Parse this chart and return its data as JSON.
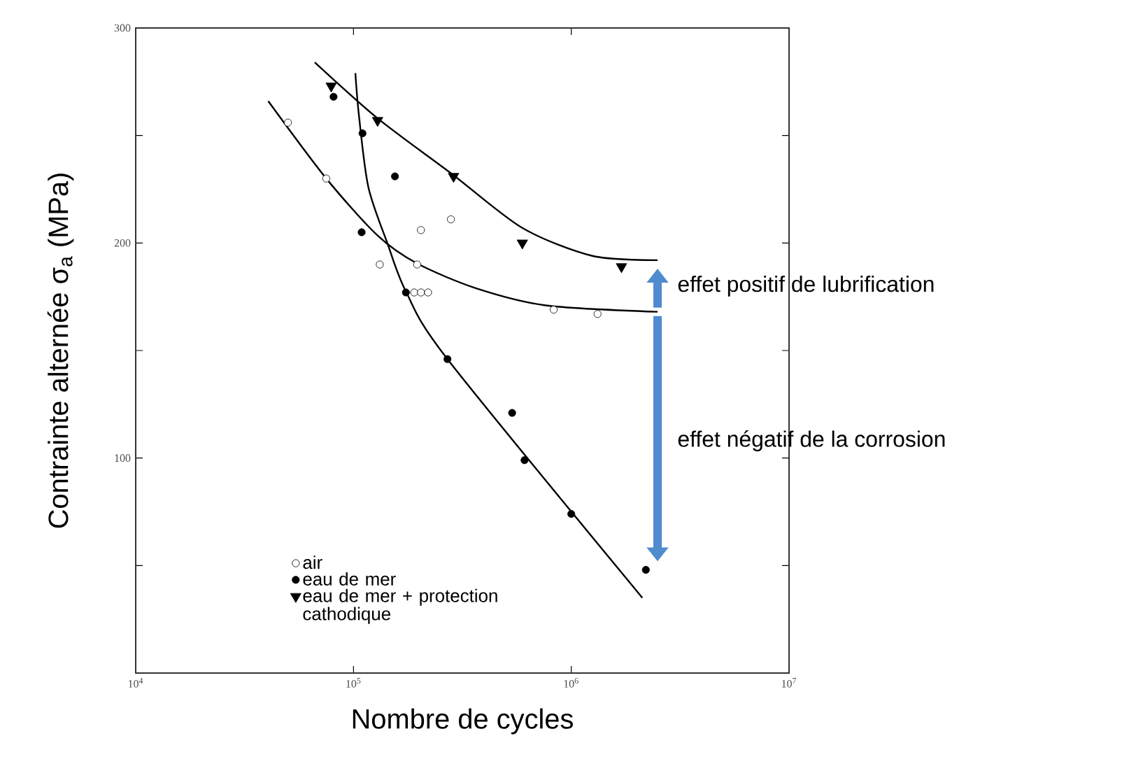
{
  "chart_data": {
    "type": "scatter",
    "xlabel": "Nombre de cycles",
    "ylabel": "Contrainte alternée σ$_{a}$ (MPa)",
    "log": "x",
    "xlim": [
      10000,
      10000000
    ],
    "ylim": [
      0,
      300
    ],
    "xticks": [
      {
        "value": 10000,
        "label": "10$^{4}$"
      },
      {
        "value": 100000,
        "label": "10$^{5}$"
      },
      {
        "value": 1000000,
        "label": "10$^{6}$"
      },
      {
        "value": 10000000,
        "label": "10$^{7}$"
      }
    ],
    "yticks": [
      {
        "value": 50,
        "label": null
      },
      100,
      {
        "value": 150,
        "label": null
      },
      200,
      {
        "value": 250,
        "label": null
      },
      300
    ],
    "grid": false,
    "legend": "bottom left",
    "series": [
      {
        "name": "air",
        "marker": "circle",
        "color": "#ffffff",
        "x": [
          50000,
          75000,
          132000,
          196000,
          204000,
          280000,
          190000,
          204000,
          220000,
          830000,
          1320000
        ],
        "values": [
          256,
          230,
          190,
          190,
          206,
          211,
          177,
          177,
          177,
          169,
          167
        ]
      },
      {
        "name": "eau de mer",
        "marker": "circle",
        "color": "#000000",
        "x": [
          81000,
          110000,
          155000,
          109000,
          174000,
          270000,
          535000,
          610000,
          1000000,
          2200000
        ],
        "values": [
          268,
          251,
          231,
          205,
          177,
          146,
          121,
          99,
          74,
          48
        ]
      },
      {
        "name": "eau de mer + protection cathodique",
        "marker": "triangle",
        "color": "#000000",
        "x": [
          79000,
          129000,
          288000,
          596000,
          1700000
        ],
        "values": [
          273,
          257,
          231,
          200,
          189
        ]
      },
      {
        "type": "line",
        "marker": "none",
        "color": "#000000",
        "x": [
          40600,
          75000,
          129000,
          196000,
          364000,
          762000,
          2490000
        ],
        "values": [
          266,
          230,
          203.5,
          190.5,
          179,
          171,
          168
        ]
      },
      {
        "type": "line",
        "marker": "none",
        "color": "#000000",
        "x": [
          102000,
          106000,
          117000,
          143000,
          174000,
          270000,
          2120000
        ],
        "values": [
          279,
          259,
          226,
          200,
          177.5,
          146,
          35
        ]
      },
      {
        "type": "line",
        "marker": "none",
        "color": "#000000",
        "x": [
          66400,
          129000,
          284000,
          596000,
          1250000,
          2490000
        ],
        "values": [
          284,
          258,
          232,
          207,
          194,
          192
        ]
      }
    ],
    "annotations": [
      "effet positif de lubrification",
      "effet négatif de la corrosion"
    ]
  }
}
